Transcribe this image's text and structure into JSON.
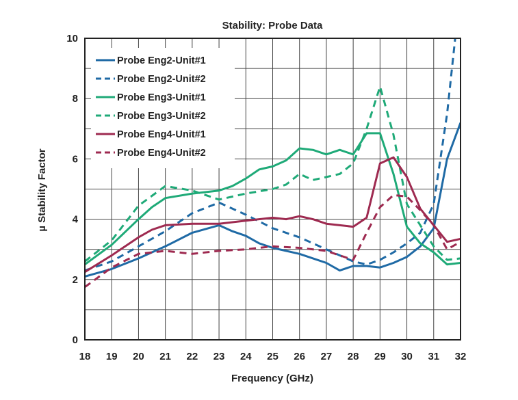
{
  "chart_data": {
    "type": "line",
    "title": "Stability: Probe Data",
    "xlabel": "Frequency (GHz)",
    "ylabel": "µ Stability Factor",
    "xlim": [
      18,
      32
    ],
    "ylim": [
      0,
      10
    ],
    "xticks": [
      "18",
      "19",
      "20",
      "21",
      "22",
      "23",
      "24",
      "25",
      "26",
      "27",
      "28",
      "29",
      "30",
      "31",
      "32"
    ],
    "yticks": [
      "0",
      "2",
      "4",
      "6",
      "8",
      "10"
    ],
    "grid": true,
    "legend_position": "top-left",
    "series": [
      {
        "name": "Probe Eng2-Unit#1",
        "color": "#1f6aa5",
        "dash": false,
        "x": [
          18,
          19,
          20,
          21,
          22,
          23,
          23.5,
          24,
          24.5,
          25,
          26,
          27,
          27.5,
          28,
          28.5,
          29,
          29.5,
          30,
          30.5,
          31,
          31.5,
          32
        ],
        "y": [
          2.1,
          2.35,
          2.7,
          3.1,
          3.55,
          3.8,
          3.6,
          3.45,
          3.2,
          3.05,
          2.85,
          2.55,
          2.3,
          2.45,
          2.45,
          2.4,
          2.55,
          2.75,
          3.1,
          3.7,
          6.0,
          7.2
        ]
      },
      {
        "name": "Probe Eng2-Unit#2",
        "color": "#1f6aa5",
        "dash": true,
        "x": [
          18,
          19,
          20,
          21,
          22,
          23,
          24,
          25,
          26,
          27,
          28,
          28.5,
          29,
          29.5,
          30,
          30.5,
          31,
          31.5,
          31.8
        ],
        "y": [
          2.3,
          2.6,
          3.1,
          3.6,
          4.2,
          4.55,
          4.15,
          3.7,
          3.4,
          3.0,
          2.6,
          2.5,
          2.65,
          2.9,
          3.2,
          3.55,
          4.5,
          7.5,
          10.0
        ]
      },
      {
        "name": "Probe Eng3-Unit#1",
        "color": "#1faa78",
        "dash": false,
        "x": [
          18,
          19,
          20,
          20.5,
          21,
          22,
          23,
          23.5,
          24,
          24.5,
          25,
          25.5,
          26,
          26.5,
          27,
          27.5,
          28,
          28.5,
          29,
          29.5,
          30,
          30.5,
          31,
          31.5,
          32
        ],
        "y": [
          2.5,
          3.15,
          4.0,
          4.4,
          4.7,
          4.85,
          4.95,
          5.1,
          5.35,
          5.65,
          5.75,
          5.95,
          6.35,
          6.3,
          6.15,
          6.3,
          6.15,
          6.85,
          6.85,
          5.5,
          3.75,
          3.2,
          2.9,
          2.5,
          2.55
        ]
      },
      {
        "name": "Probe Eng3-Unit#2",
        "color": "#1faa78",
        "dash": true,
        "x": [
          18,
          19,
          20,
          21,
          22,
          23,
          24,
          25,
          25.5,
          26,
          26.5,
          27,
          27.5,
          28,
          28.5,
          29,
          29.5,
          30,
          30.5,
          31,
          31.5,
          32
        ],
        "y": [
          2.6,
          3.3,
          4.45,
          5.1,
          4.95,
          4.65,
          4.85,
          5.0,
          5.15,
          5.5,
          5.3,
          5.4,
          5.5,
          5.85,
          7.0,
          8.4,
          6.8,
          4.5,
          3.8,
          3.1,
          2.65,
          2.7
        ]
      },
      {
        "name": "Probe Eng4-Unit#1",
        "color": "#9e2a50",
        "dash": false,
        "x": [
          18,
          19,
          20,
          20.5,
          21,
          22,
          23,
          24,
          25,
          25.5,
          26,
          26.5,
          27,
          27.5,
          28,
          28.5,
          29,
          29.5,
          30,
          30.5,
          31,
          31.5,
          32
        ],
        "y": [
          2.25,
          2.8,
          3.4,
          3.65,
          3.8,
          3.85,
          3.85,
          3.95,
          4.05,
          4.0,
          4.1,
          4.0,
          3.85,
          3.8,
          3.75,
          4.05,
          5.85,
          6.05,
          5.4,
          4.35,
          3.8,
          3.25,
          3.35
        ]
      },
      {
        "name": "Probe Eng4-Unit#2",
        "color": "#9e2a50",
        "dash": true,
        "x": [
          18,
          19,
          20,
          21,
          22,
          23,
          24,
          25,
          26,
          27,
          28,
          28.5,
          29,
          29.5,
          30,
          30.5,
          31,
          31.5,
          32
        ],
        "y": [
          1.75,
          2.4,
          2.85,
          2.95,
          2.85,
          2.95,
          3.0,
          3.1,
          3.05,
          2.95,
          2.65,
          3.55,
          4.4,
          4.8,
          4.75,
          4.3,
          3.8,
          3.0,
          3.25
        ]
      }
    ]
  }
}
